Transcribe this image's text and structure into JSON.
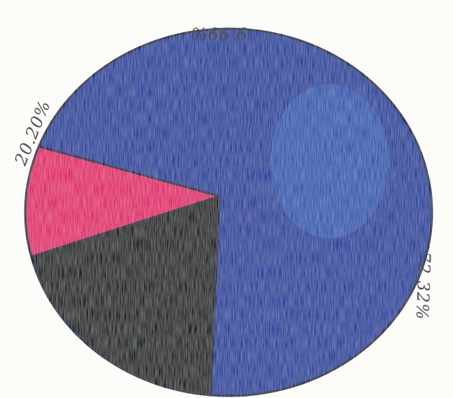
{
  "chart_data": {
    "type": "pie",
    "slices": [
      {
        "label": "9.99%",
        "value": 9.99,
        "color": "#e01a6b"
      },
      {
        "label": "72.32%",
        "value": 72.32,
        "color": "#1b3f9c"
      },
      {
        "label": "20.20%",
        "value": 20.2,
        "color": "#111213"
      }
    ],
    "colors": {
      "background": "#fcfcf9",
      "label_ink": "#55504f",
      "outline": "#0d1b3a"
    }
  }
}
